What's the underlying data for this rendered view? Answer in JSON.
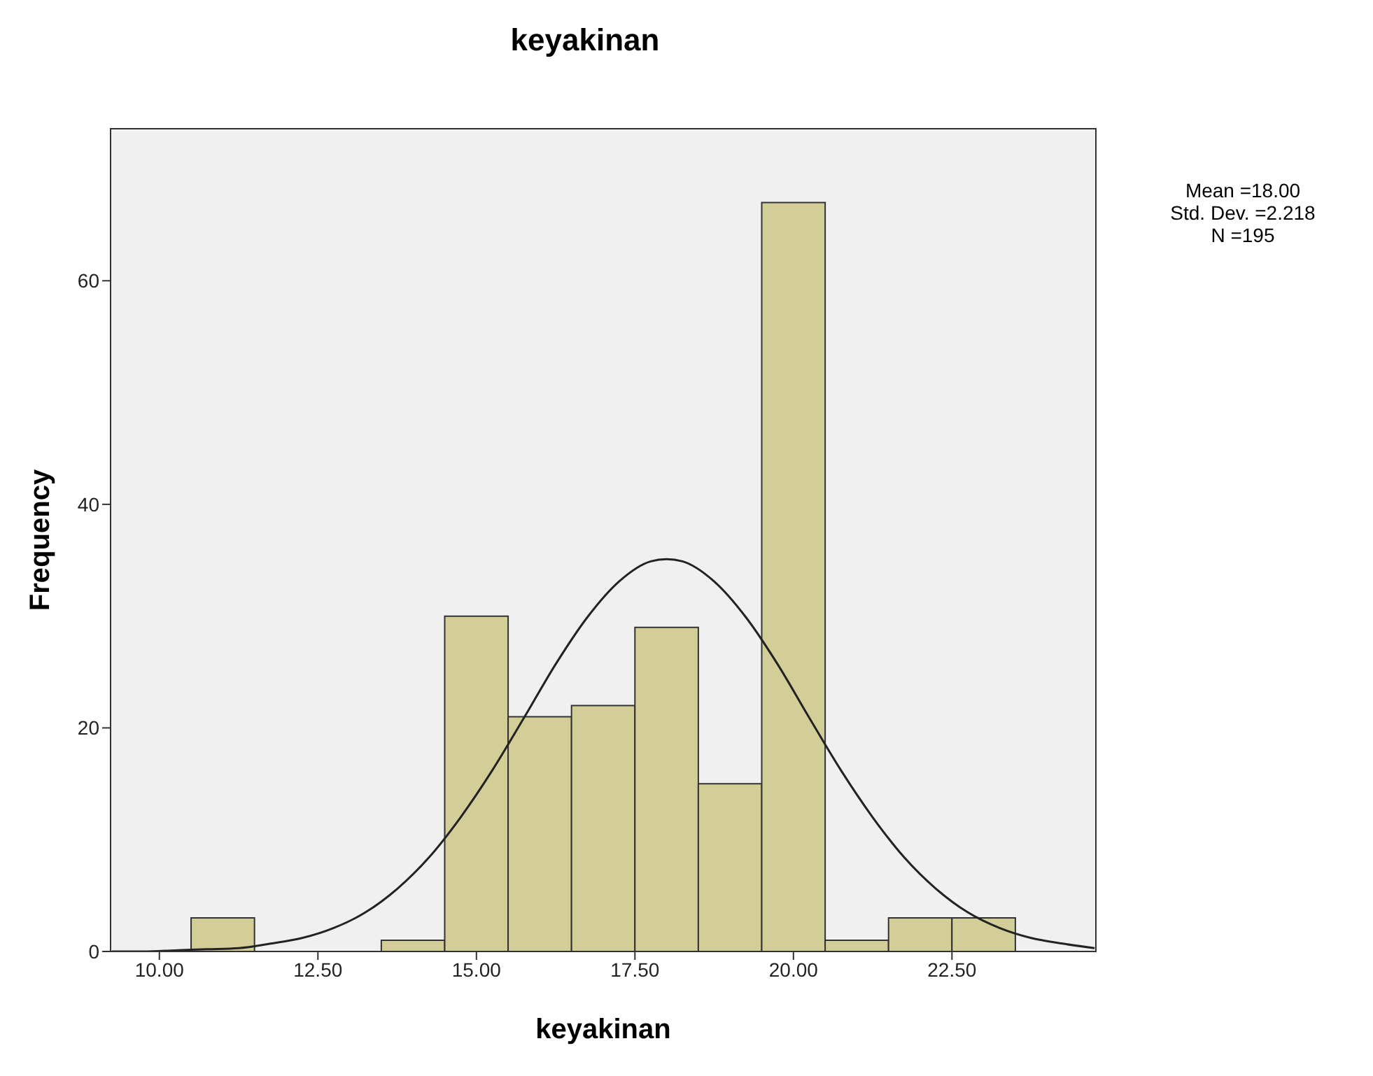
{
  "chart_data": {
    "type": "histogram",
    "title": "keyakinan",
    "xlabel": "keyakinan",
    "ylabel": "Frequency",
    "bins": [
      10.5,
      11.5,
      12.5,
      13.5,
      14.5,
      15.5,
      16.5,
      17.5,
      18.5,
      19.5,
      20.5,
      21.5,
      22.5,
      23.5
    ],
    "values": [
      3,
      0,
      0,
      1,
      30,
      21,
      22,
      29,
      15,
      67,
      1,
      3,
      3
    ],
    "color": "#d3ce98",
    "series": [
      {
        "type": "line",
        "color": "#222222",
        "x": [
          9.25,
          9.75,
          10.25,
          10.75,
          11.25,
          11.75,
          12.25,
          12.75,
          13.25,
          13.75,
          14.25,
          14.75,
          15.25,
          15.75,
          16.25,
          16.75,
          17.25,
          17.75,
          18,
          18.25,
          18.75,
          19.25,
          19.75,
          20.25,
          20.75,
          21.25,
          21.75,
          22.25,
          22.75,
          23.25,
          23.75,
          24.25,
          24.75
        ],
        "values": [
          0,
          0,
          0.1,
          0.2,
          0.3,
          0.7,
          1.2,
          2.1,
          3.5,
          5.6,
          8.4,
          12,
          16.2,
          20.9,
          25.7,
          29.9,
          33.1,
          34.9,
          35.1,
          34.9,
          33.1,
          29.9,
          25.7,
          20.9,
          16.2,
          12,
          8.4,
          5.6,
          3.5,
          2.1,
          1.2,
          0.7,
          0.3
        ]
      }
    ],
    "xlim": [
      9.23,
      24.77
    ],
    "ylim": [
      0,
      73.6
    ],
    "xticks": [
      {
        "value": 10,
        "label": "10.00"
      },
      {
        "value": 12.5,
        "label": "12.50"
      },
      {
        "value": 15,
        "label": "15.00"
      },
      {
        "value": 17.5,
        "label": "17.50"
      },
      {
        "value": 20,
        "label": "20.00"
      },
      {
        "value": 22.5,
        "label": "22.50"
      }
    ],
    "yticks": [
      0,
      20,
      40,
      60
    ],
    "annotations": [
      "Mean =18.00",
      "Std. Dev. =2.218",
      "N =195"
    ]
  }
}
